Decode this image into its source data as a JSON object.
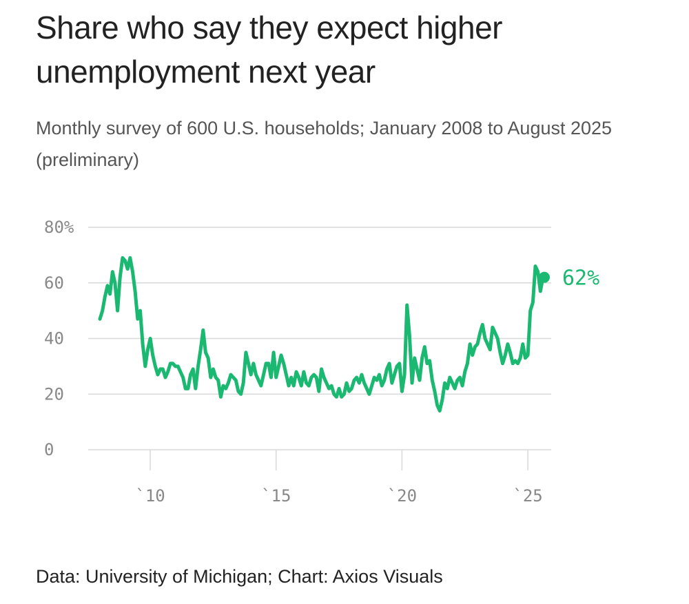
{
  "title": "Share who say they expect higher unemployment next year",
  "subtitle": "Monthly survey of 600 U.S. households; January 2008 to August 2025 (preliminary)",
  "source": "Data: University of Michigan; Chart: Axios Visuals",
  "colors": {
    "line": "#1ab870",
    "grid": "#d9d9d9",
    "tick": "#888888"
  },
  "chart_data": {
    "type": "line",
    "title": "Share who say they expect higher unemployment next year",
    "xlabel": "",
    "ylabel": "",
    "xlim": [
      2008.0,
      2025.6
    ],
    "ylim": [
      0,
      80
    ],
    "yticks": [
      0,
      20,
      40,
      60,
      80
    ],
    "ytick_labels": [
      "0",
      "20",
      "40",
      "60",
      "80%"
    ],
    "xticks": [
      2010,
      2015,
      2020,
      2025
    ],
    "xtick_labels": [
      "`10",
      "`15",
      "`20",
      "`25"
    ],
    "grid": true,
    "end_label": "62%",
    "series": [
      {
        "name": "Expect higher unemployment",
        "points": [
          [
            2008.0,
            47
          ],
          [
            2008.1,
            50
          ],
          [
            2008.2,
            55
          ],
          [
            2008.3,
            59
          ],
          [
            2008.4,
            56
          ],
          [
            2008.5,
            64
          ],
          [
            2008.6,
            60
          ],
          [
            2008.7,
            50
          ],
          [
            2008.8,
            62
          ],
          [
            2008.9,
            69
          ],
          [
            2009.0,
            68
          ],
          [
            2009.1,
            65
          ],
          [
            2009.2,
            69
          ],
          [
            2009.3,
            64
          ],
          [
            2009.4,
            57
          ],
          [
            2009.5,
            47
          ],
          [
            2009.6,
            50
          ],
          [
            2009.7,
            38
          ],
          [
            2009.8,
            30
          ],
          [
            2009.9,
            36
          ],
          [
            2010.0,
            40
          ],
          [
            2010.1,
            34
          ],
          [
            2010.2,
            30
          ],
          [
            2010.3,
            27
          ],
          [
            2010.4,
            29
          ],
          [
            2010.5,
            29
          ],
          [
            2010.6,
            26
          ],
          [
            2010.7,
            28
          ],
          [
            2010.8,
            31
          ],
          [
            2010.9,
            31
          ],
          [
            2011.0,
            30
          ],
          [
            2011.1,
            30
          ],
          [
            2011.2,
            28
          ],
          [
            2011.3,
            26
          ],
          [
            2011.4,
            22
          ],
          [
            2011.5,
            22
          ],
          [
            2011.6,
            27
          ],
          [
            2011.7,
            29
          ],
          [
            2011.8,
            22
          ],
          [
            2011.9,
            30
          ],
          [
            2012.0,
            36
          ],
          [
            2012.1,
            43
          ],
          [
            2012.2,
            35
          ],
          [
            2012.3,
            33
          ],
          [
            2012.4,
            26
          ],
          [
            2012.5,
            29
          ],
          [
            2012.6,
            26
          ],
          [
            2012.7,
            25
          ],
          [
            2012.8,
            19
          ],
          [
            2012.9,
            23
          ],
          [
            2013.0,
            22
          ],
          [
            2013.1,
            24
          ],
          [
            2013.2,
            27
          ],
          [
            2013.3,
            26
          ],
          [
            2013.4,
            25
          ],
          [
            2013.5,
            21
          ],
          [
            2013.6,
            20
          ],
          [
            2013.7,
            24
          ],
          [
            2013.8,
            35
          ],
          [
            2013.9,
            31
          ],
          [
            2014.0,
            27
          ],
          [
            2014.1,
            31
          ],
          [
            2014.2,
            27
          ],
          [
            2014.3,
            25
          ],
          [
            2014.4,
            23
          ],
          [
            2014.5,
            27
          ],
          [
            2014.6,
            31
          ],
          [
            2014.7,
            31
          ],
          [
            2014.8,
            26
          ],
          [
            2014.9,
            35
          ],
          [
            2015.0,
            26
          ],
          [
            2015.1,
            30
          ],
          [
            2015.2,
            34
          ],
          [
            2015.3,
            31
          ],
          [
            2015.4,
            27
          ],
          [
            2015.5,
            23
          ],
          [
            2015.6,
            26
          ],
          [
            2015.7,
            23
          ],
          [
            2015.8,
            28
          ],
          [
            2015.9,
            26
          ],
          [
            2016.0,
            23
          ],
          [
            2016.1,
            28
          ],
          [
            2016.2,
            24
          ],
          [
            2016.3,
            23
          ],
          [
            2016.4,
            26
          ],
          [
            2016.5,
            27
          ],
          [
            2016.6,
            26
          ],
          [
            2016.7,
            21
          ],
          [
            2016.8,
            29
          ],
          [
            2016.9,
            26
          ],
          [
            2017.0,
            24
          ],
          [
            2017.1,
            22
          ],
          [
            2017.2,
            23
          ],
          [
            2017.3,
            20
          ],
          [
            2017.4,
            19
          ],
          [
            2017.5,
            22
          ],
          [
            2017.6,
            19
          ],
          [
            2017.7,
            20
          ],
          [
            2017.8,
            24
          ],
          [
            2017.9,
            21
          ],
          [
            2018.0,
            22
          ],
          [
            2018.1,
            25
          ],
          [
            2018.2,
            26
          ],
          [
            2018.3,
            24
          ],
          [
            2018.4,
            27
          ],
          [
            2018.5,
            24
          ],
          [
            2018.6,
            22
          ],
          [
            2018.7,
            20
          ],
          [
            2018.8,
            23
          ],
          [
            2018.9,
            26
          ],
          [
            2019.0,
            25
          ],
          [
            2019.1,
            27
          ],
          [
            2019.2,
            23
          ],
          [
            2019.3,
            25
          ],
          [
            2019.4,
            29
          ],
          [
            2019.5,
            31
          ],
          [
            2019.6,
            24
          ],
          [
            2019.7,
            27
          ],
          [
            2019.8,
            30
          ],
          [
            2019.9,
            31
          ],
          [
            2020.0,
            21
          ],
          [
            2020.1,
            27
          ],
          [
            2020.2,
            52
          ],
          [
            2020.3,
            41
          ],
          [
            2020.4,
            24
          ],
          [
            2020.5,
            33
          ],
          [
            2020.6,
            29
          ],
          [
            2020.7,
            25
          ],
          [
            2020.8,
            33
          ],
          [
            2020.9,
            37
          ],
          [
            2021.0,
            31
          ],
          [
            2021.1,
            32
          ],
          [
            2021.2,
            25
          ],
          [
            2021.3,
            21
          ],
          [
            2021.4,
            16
          ],
          [
            2021.5,
            14
          ],
          [
            2021.6,
            18
          ],
          [
            2021.7,
            24
          ],
          [
            2021.8,
            22
          ],
          [
            2021.9,
            26
          ],
          [
            2022.0,
            24
          ],
          [
            2022.1,
            22
          ],
          [
            2022.2,
            25
          ],
          [
            2022.3,
            26
          ],
          [
            2022.4,
            23
          ],
          [
            2022.5,
            28
          ],
          [
            2022.6,
            31
          ],
          [
            2022.7,
            38
          ],
          [
            2022.8,
            34
          ],
          [
            2022.9,
            37
          ],
          [
            2023.0,
            38
          ],
          [
            2023.1,
            42
          ],
          [
            2023.2,
            45
          ],
          [
            2023.3,
            40
          ],
          [
            2023.4,
            38
          ],
          [
            2023.5,
            36
          ],
          [
            2023.6,
            44
          ],
          [
            2023.7,
            42
          ],
          [
            2023.8,
            40
          ],
          [
            2023.9,
            35
          ],
          [
            2024.0,
            31
          ],
          [
            2024.1,
            34
          ],
          [
            2024.2,
            38
          ],
          [
            2024.3,
            35
          ],
          [
            2024.4,
            31
          ],
          [
            2024.5,
            32
          ],
          [
            2024.6,
            31
          ],
          [
            2024.7,
            33
          ],
          [
            2024.8,
            38
          ],
          [
            2024.9,
            33
          ],
          [
            2025.0,
            34
          ],
          [
            2025.1,
            50
          ],
          [
            2025.2,
            53
          ],
          [
            2025.3,
            66
          ],
          [
            2025.4,
            64
          ],
          [
            2025.5,
            57
          ],
          [
            2025.6,
            62
          ]
        ]
      }
    ]
  }
}
